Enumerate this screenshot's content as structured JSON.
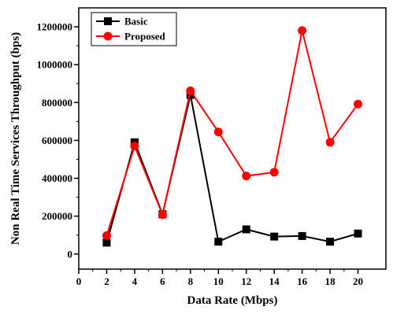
{
  "chart_data": {
    "type": "line",
    "title": "",
    "xlabel": "Data Rate (Mbps)",
    "ylabel": "Non Real Time Services Throughput (bps)",
    "xlim": [
      0,
      22
    ],
    "ylim": [
      -80000,
      1300000
    ],
    "x_ticks": [
      0,
      2,
      4,
      6,
      8,
      10,
      12,
      14,
      16,
      18,
      20
    ],
    "y_ticks": [
      0,
      200000,
      400000,
      600000,
      800000,
      1000000,
      1200000
    ],
    "x": [
      2,
      4,
      6,
      8,
      10,
      12,
      14,
      16,
      18,
      20
    ],
    "legend_position": "top-left",
    "grid": false,
    "series": [
      {
        "name": "Basic",
        "color": "#000000",
        "marker": "square",
        "values": [
          60000,
          590000,
          210000,
          840000,
          65000,
          130000,
          92000,
          95000,
          65000,
          108000
        ]
      },
      {
        "name": "Proposed",
        "color": "#ff0000",
        "marker": "circle",
        "values": [
          97000,
          570000,
          208000,
          862000,
          645000,
          412000,
          432000,
          1180000,
          590000,
          792000
        ]
      }
    ]
  }
}
